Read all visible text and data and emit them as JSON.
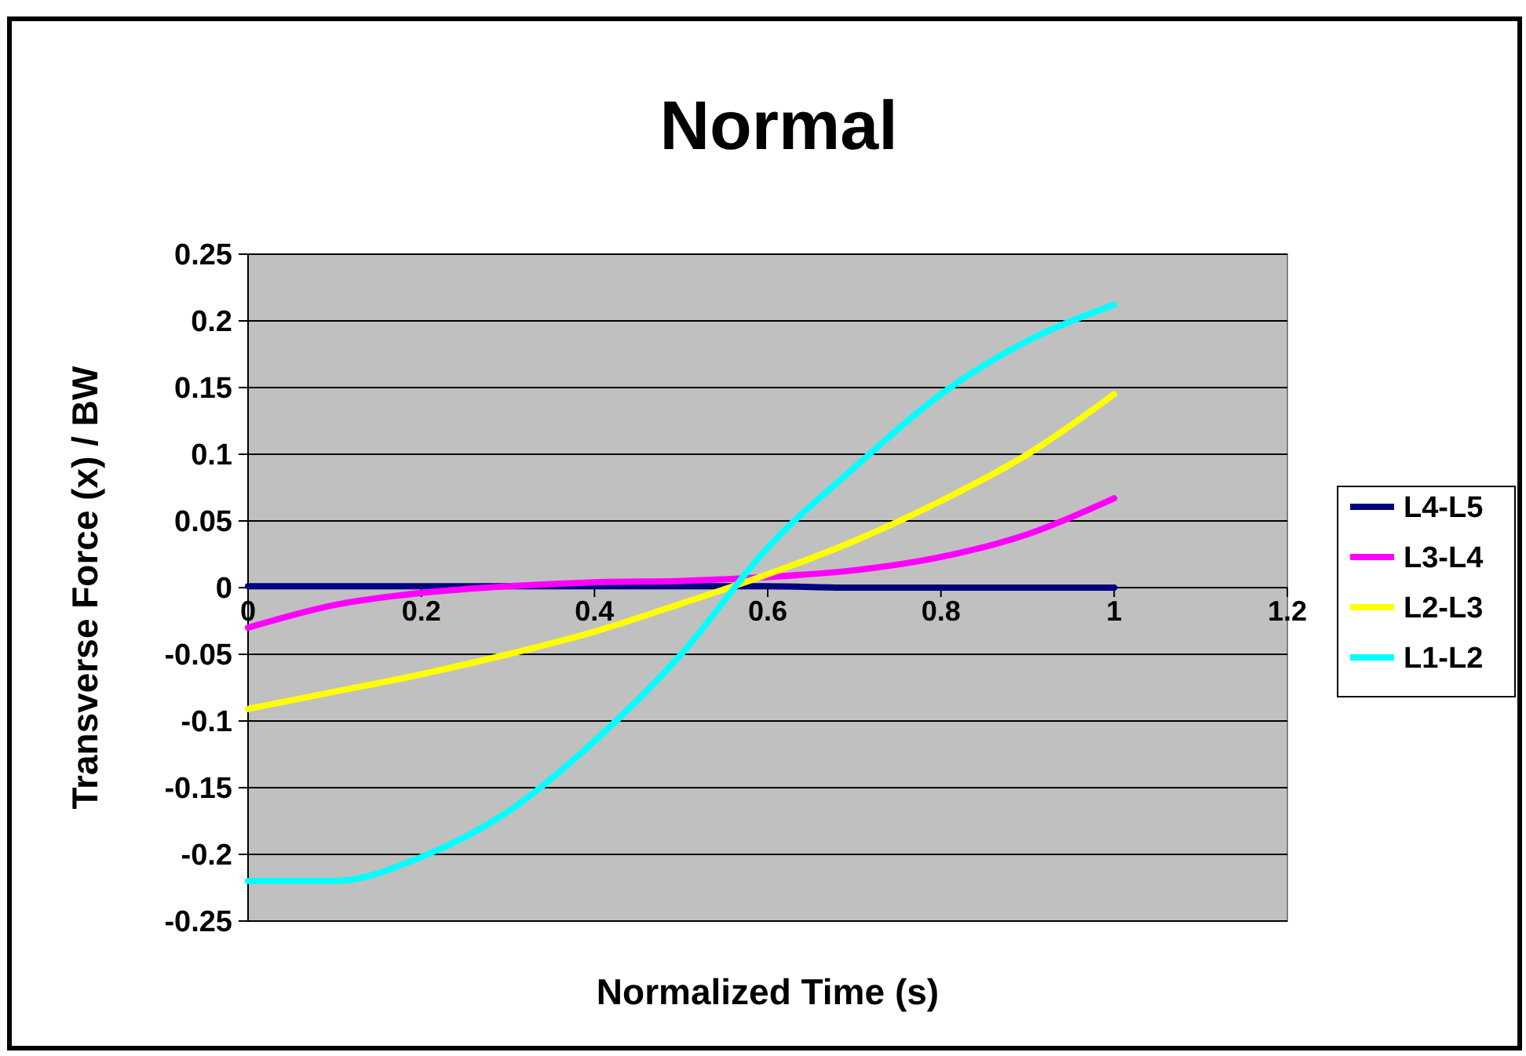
{
  "chart_data": {
    "type": "line",
    "title": "Normal",
    "xlabel": "Normalized Time (s)",
    "ylabel": "Transverse Force (x) / BW",
    "x": [
      0,
      0.1,
      0.2,
      0.3,
      0.4,
      0.5,
      0.6,
      0.7,
      0.8,
      0.9,
      1.0
    ],
    "series": [
      {
        "name": "L4-L5",
        "color": "#000080",
        "values": [
          0.001,
          0.001,
          0.001,
          0.001,
          0.001,
          0.001,
          0.001,
          0,
          0,
          0,
          0
        ]
      },
      {
        "name": "L3-L4",
        "color": "#ff00ff",
        "values": [
          -0.03,
          -0.013,
          -0.004,
          0.001,
          0.004,
          0.005,
          0.008,
          0.013,
          0.023,
          0.04,
          0.067
        ]
      },
      {
        "name": "L2-L3",
        "color": "#ffff00",
        "values": [
          -0.091,
          -0.078,
          -0.065,
          -0.05,
          -0.033,
          -0.012,
          0.01,
          0.035,
          0.065,
          0.1,
          0.145
        ]
      },
      {
        "name": "L1-L2",
        "color": "#00ffff",
        "values": [
          -0.22,
          -0.22,
          -0.202,
          -0.168,
          -0.115,
          -0.05,
          0.03,
          0.09,
          0.145,
          0.185,
          0.212
        ]
      }
    ],
    "xlim": [
      0,
      1.2
    ],
    "xticks": [
      {
        "value": 0,
        "label": "0"
      },
      0.2,
      0.4,
      0.6,
      0.8,
      {
        "value": 1,
        "label": "1"
      },
      1.2
    ],
    "ylim": [
      -0.25,
      0.25
    ],
    "yticks": [
      -0.25,
      -0.2,
      -0.15,
      -0.1,
      -0.05,
      {
        "value": 0,
        "label": "0"
      },
      0.05,
      0.1,
      0.15,
      0.2,
      0.25
    ],
    "grid": "y",
    "legend": "right",
    "marker": "none",
    "line_style": "solid"
  }
}
